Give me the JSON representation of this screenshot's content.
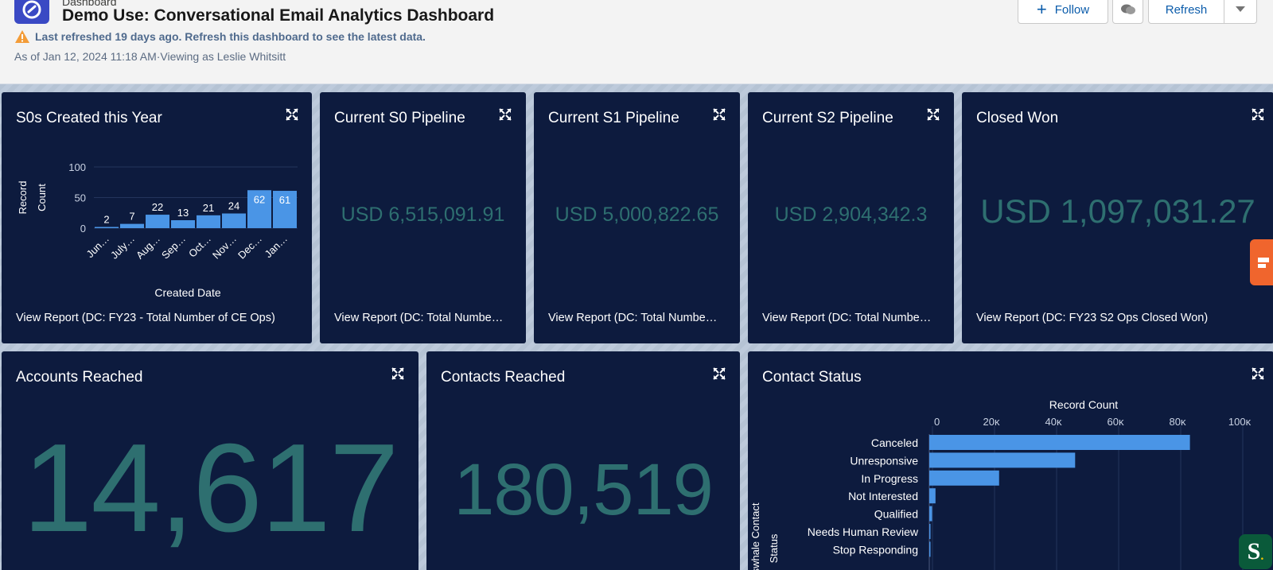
{
  "header": {
    "breadcrumb": "Dashboard",
    "title": "Demo Use: Conversational Email Analytics Dashboard",
    "warning": "Last refreshed 19 days ago. Refresh this dashboard to see the latest data.",
    "as_of": "As of Jan 12, 2024 11:18 AM·Viewing as Leslie Whitsitt",
    "follow_label": "Follow",
    "refresh_label": "Refresh",
    "icons": [
      "dashboard-app-icon",
      "warning-icon",
      "plus-icon",
      "feed-icon",
      "chevron-down-icon"
    ]
  },
  "cards": {
    "s0_created": {
      "title": "S0s Created this Year",
      "footer": "View Report (DC: FY23 - Total Number of CE Ops)"
    },
    "s0_pipeline": {
      "title": "Current S0 Pipeline",
      "value": "USD 6,515,091.91",
      "footer": "View Report (DC: Total Numbe…"
    },
    "s1_pipeline": {
      "title": "Current S1 Pipeline",
      "value": "USD 5,000,822.65",
      "footer": "View Report (DC: Total Numbe…"
    },
    "s2_pipeline": {
      "title": "Current S2 Pipeline",
      "value": "USD 2,904,342.3",
      "footer": "View Report (DC: Total Numbe…"
    },
    "closed_won": {
      "title": "Closed Won",
      "value": "USD 1,097,031.27",
      "footer": "View Report (DC: FY23 S2 Ops Closed Won)"
    },
    "accounts_reached": {
      "title": "Accounts Reached",
      "value": "14,617"
    },
    "contacts_reached": {
      "title": "Contacts Reached",
      "value": "180,519"
    },
    "contact_status": {
      "title": "Contact Status"
    }
  },
  "colors": {
    "card_bg": "#0d1b3e",
    "bar": "#4a95e6",
    "metric_text": "#2e6f70",
    "header_bg": "#f3f3f3"
  },
  "chart_data": [
    {
      "type": "bar",
      "categories": [
        "Jun…",
        "July…",
        "Aug…",
        "Sep…",
        "Oct…",
        "Nov…",
        "Dec…",
        "Jan…"
      ],
      "values": [
        2,
        7,
        22,
        13,
        21,
        24,
        62,
        61
      ],
      "xlabel": "Created Date",
      "ylabel": "Record Count",
      "yticks": [
        "0",
        "50",
        "100"
      ],
      "ylim": [
        0,
        100
      ],
      "data_labels": true,
      "grid": true
    },
    {
      "type": "bar",
      "orientation": "horizontal",
      "categories": [
        "Canceled",
        "Unresponsive",
        "In Progress",
        "Not Interested",
        "Qualified",
        "Needs Human Review",
        "Stop Responding"
      ],
      "values": [
        84000,
        47000,
        22500,
        2000,
        900,
        200,
        150
      ],
      "xlabel": "Record Count",
      "ylabel": "Saleswhale Contact Status",
      "xticks": [
        "0",
        "20ĸ",
        "40ĸ",
        "60ĸ",
        "80ĸ",
        "100ĸ"
      ],
      "xlim": [
        0,
        100000
      ],
      "grid": true
    }
  ]
}
